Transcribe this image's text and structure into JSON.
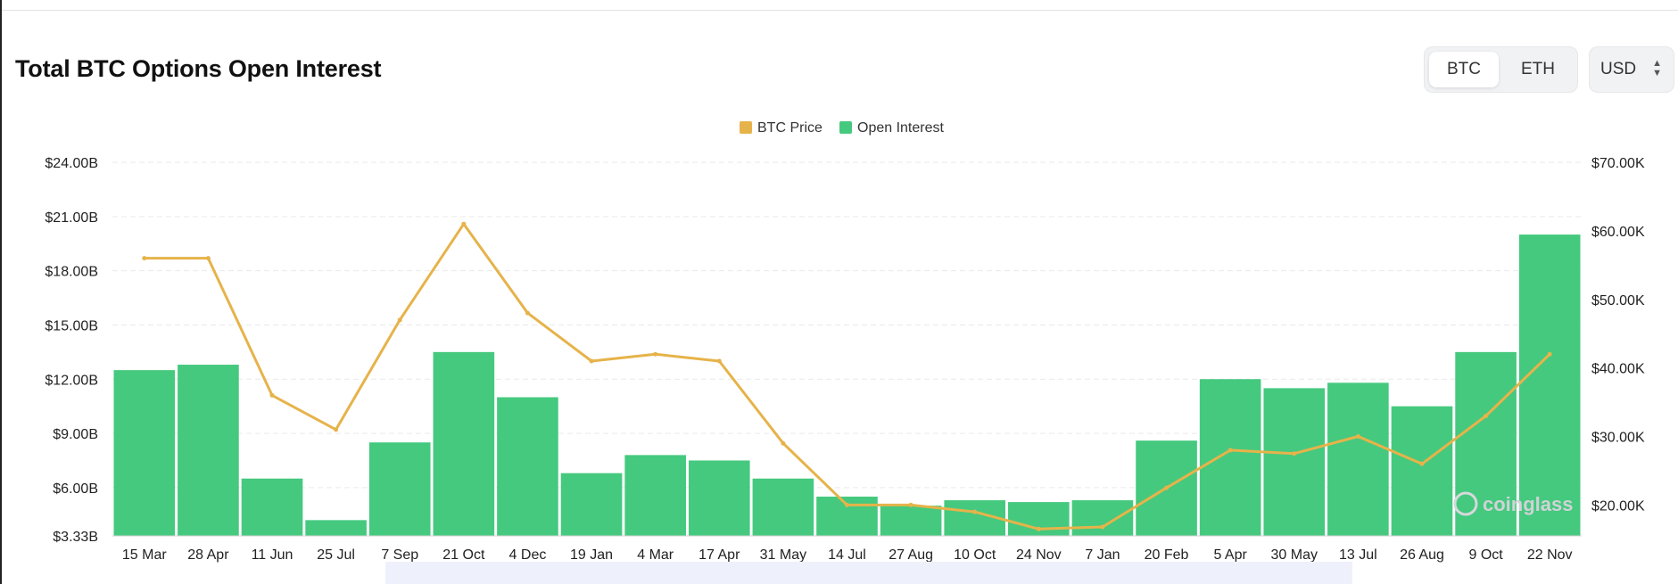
{
  "header": {
    "title": "Total BTC Options Open Interest",
    "asset_tabs": [
      {
        "label": "BTC",
        "active": true
      },
      {
        "label": "ETH",
        "active": false
      }
    ],
    "currency_select": {
      "value": "USD"
    }
  },
  "watermark": "coinglass",
  "colors": {
    "price": "#E6B34A",
    "open_interest": "#45C97E",
    "grid": "#e9e9e9"
  },
  "chart_data": {
    "type": "bar",
    "title": "Total BTC Options Open Interest",
    "legend": {
      "position": "top-center",
      "items": [
        {
          "name": "BTC Price",
          "color": "#E6B34A"
        },
        {
          "name": "Open Interest",
          "color": "#45C97E"
        }
      ]
    },
    "x_tick_labels": [
      "15 Mar",
      "28 Apr",
      "11 Jun",
      "25 Jul",
      "7 Sep",
      "21 Oct",
      "4 Dec",
      "19 Jan",
      "4 Mar",
      "17 Apr",
      "31 May",
      "14 Jul",
      "27 Aug",
      "10 Oct",
      "24 Nov",
      "7 Jan",
      "20 Feb",
      "5 Apr",
      "30 May",
      "13 Jul",
      "26 Aug",
      "9 Oct",
      "22 Nov"
    ],
    "y_left": {
      "ticks": [
        "$24.00B",
        "$21.00B",
        "$18.00B",
        "$15.00B",
        "$12.00B",
        "$9.00B",
        "$6.00B",
        "$3.33B"
      ],
      "range": [
        3.33,
        24
      ],
      "unit": "USD billions"
    },
    "y_right": {
      "ticks": [
        "$70.00K",
        "$60.00K",
        "$50.00K",
        "$40.00K",
        "$30.00K",
        "$20.00K"
      ],
      "range": [
        15.5,
        70
      ],
      "unit": "USD thousands"
    },
    "grid": true,
    "series": [
      {
        "name": "Open Interest",
        "kind": "bar",
        "axis": "left",
        "x": [
          "15 Mar",
          "28 Apr",
          "11 Jun",
          "25 Jul",
          "7 Sep",
          "21 Oct",
          "4 Dec",
          "19 Jan",
          "4 Mar",
          "17 Apr",
          "31 May",
          "14 Jul",
          "27 Aug",
          "10 Oct",
          "24 Nov",
          "7 Jan",
          "20 Feb",
          "5 Apr",
          "30 May",
          "13 Jul",
          "26 Aug",
          "9 Oct",
          "22 Nov"
        ],
        "values": [
          12.5,
          12.8,
          6.5,
          4.2,
          8.5,
          13.5,
          11.0,
          6.8,
          7.8,
          7.5,
          6.5,
          5.5,
          5.0,
          5.3,
          5.2,
          5.3,
          8.6,
          12.0,
          11.5,
          11.8,
          10.5,
          13.5,
          20.0
        ]
      },
      {
        "name": "BTC Price",
        "kind": "line",
        "axis": "right",
        "x": [
          "15 Mar",
          "28 Apr",
          "11 Jun",
          "25 Jul",
          "7 Sep",
          "21 Oct",
          "4 Dec",
          "19 Jan",
          "4 Mar",
          "17 Apr",
          "31 May",
          "14 Jul",
          "27 Aug",
          "10 Oct",
          "24 Nov",
          "7 Jan",
          "20 Feb",
          "5 Apr",
          "30 May",
          "13 Jul",
          "26 Aug",
          "9 Oct",
          "22 Nov"
        ],
        "values": [
          56,
          56,
          36,
          31,
          47,
          61,
          48,
          41,
          42,
          41,
          29,
          20,
          20,
          19,
          16.5,
          16.8,
          22.5,
          28,
          27.5,
          30,
          26,
          33,
          42
        ]
      }
    ]
  }
}
